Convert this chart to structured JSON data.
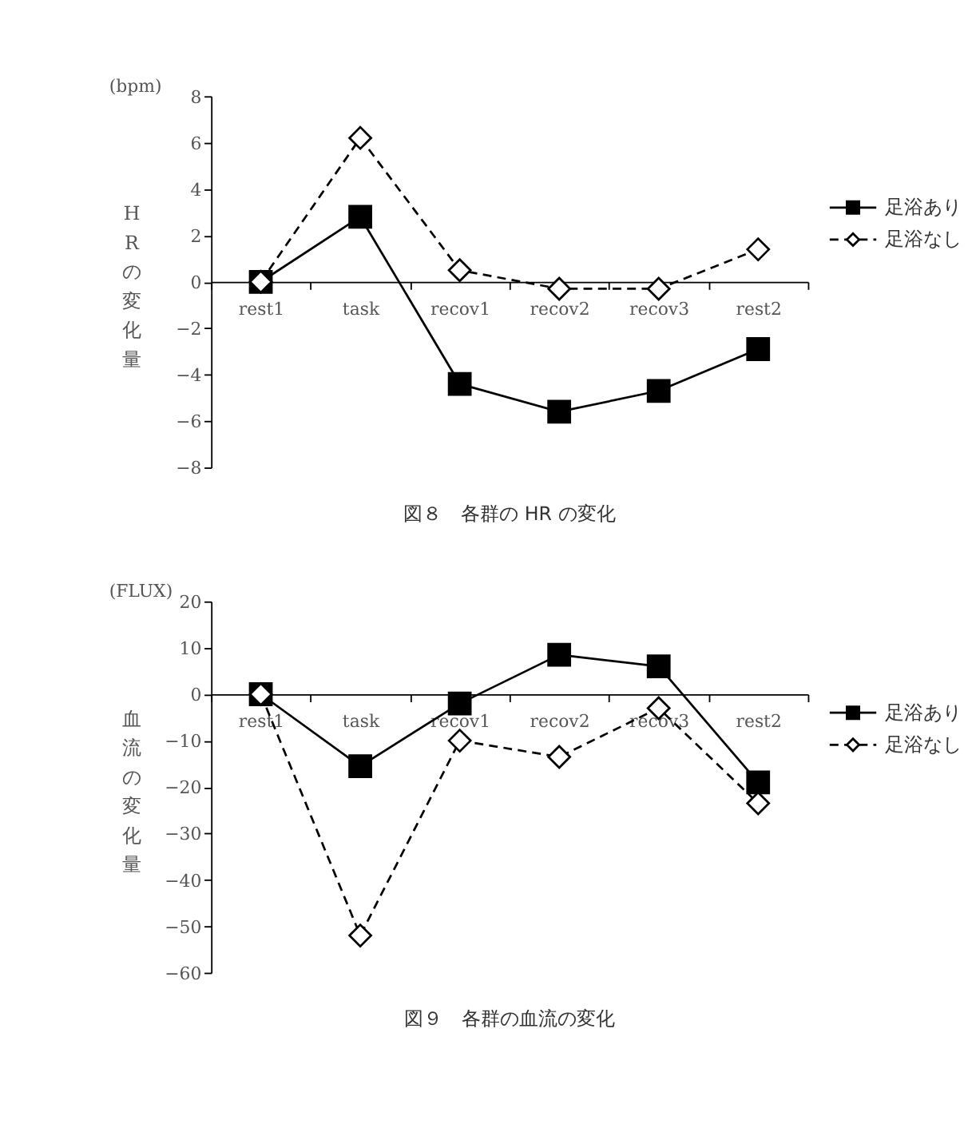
{
  "chart_data": [
    {
      "type": "line",
      "title": "図８　各群の HR の変化",
      "ylabel": "HRの変化量",
      "annotations": [
        "(bpm)"
      ],
      "categories": [
        "rest1",
        "task",
        "recov1",
        "recov2",
        "recov3",
        "rest2"
      ],
      "series": [
        {
          "name": "足浴あり",
          "color": "#000000",
          "marker": "square",
          "line_style": "solid",
          "values": [
            0,
            2.8,
            -4.4,
            -5.6,
            -4.7,
            -2.9
          ]
        },
        {
          "name": "足浴なし",
          "color": "#000000",
          "marker": "diamond",
          "line_style": "dashed",
          "values": [
            0,
            6.2,
            0.5,
            -0.3,
            -0.3,
            1.4
          ]
        }
      ],
      "ylim": [
        -8,
        8
      ],
      "yticks": [
        -8,
        -6,
        -4,
        -2,
        0,
        2,
        4,
        6,
        8
      ],
      "grid": false,
      "legend": "right"
    },
    {
      "type": "line",
      "title": "図９　各群の血流の変化",
      "ylabel": "血流の変化量",
      "annotations": [
        "(FLUX)"
      ],
      "categories": [
        "rest1",
        "task",
        "recov1",
        "recov2",
        "recov3",
        "rest2"
      ],
      "series": [
        {
          "name": "足浴あり",
          "color": "#000000",
          "marker": "square",
          "line_style": "solid",
          "values": [
            0,
            -15.5,
            -2,
            8.5,
            6,
            -19
          ]
        },
        {
          "name": "足浴なし",
          "color": "#000000",
          "marker": "diamond",
          "line_style": "dashed",
          "values": [
            0,
            -52,
            -10,
            -13.5,
            -3,
            -23.5
          ]
        }
      ],
      "ylim": [
        -60,
        20
      ],
      "yticks": [
        -60,
        -50,
        -40,
        -30,
        -20,
        -10,
        0,
        10,
        20
      ],
      "grid": false,
      "legend": "right"
    }
  ]
}
